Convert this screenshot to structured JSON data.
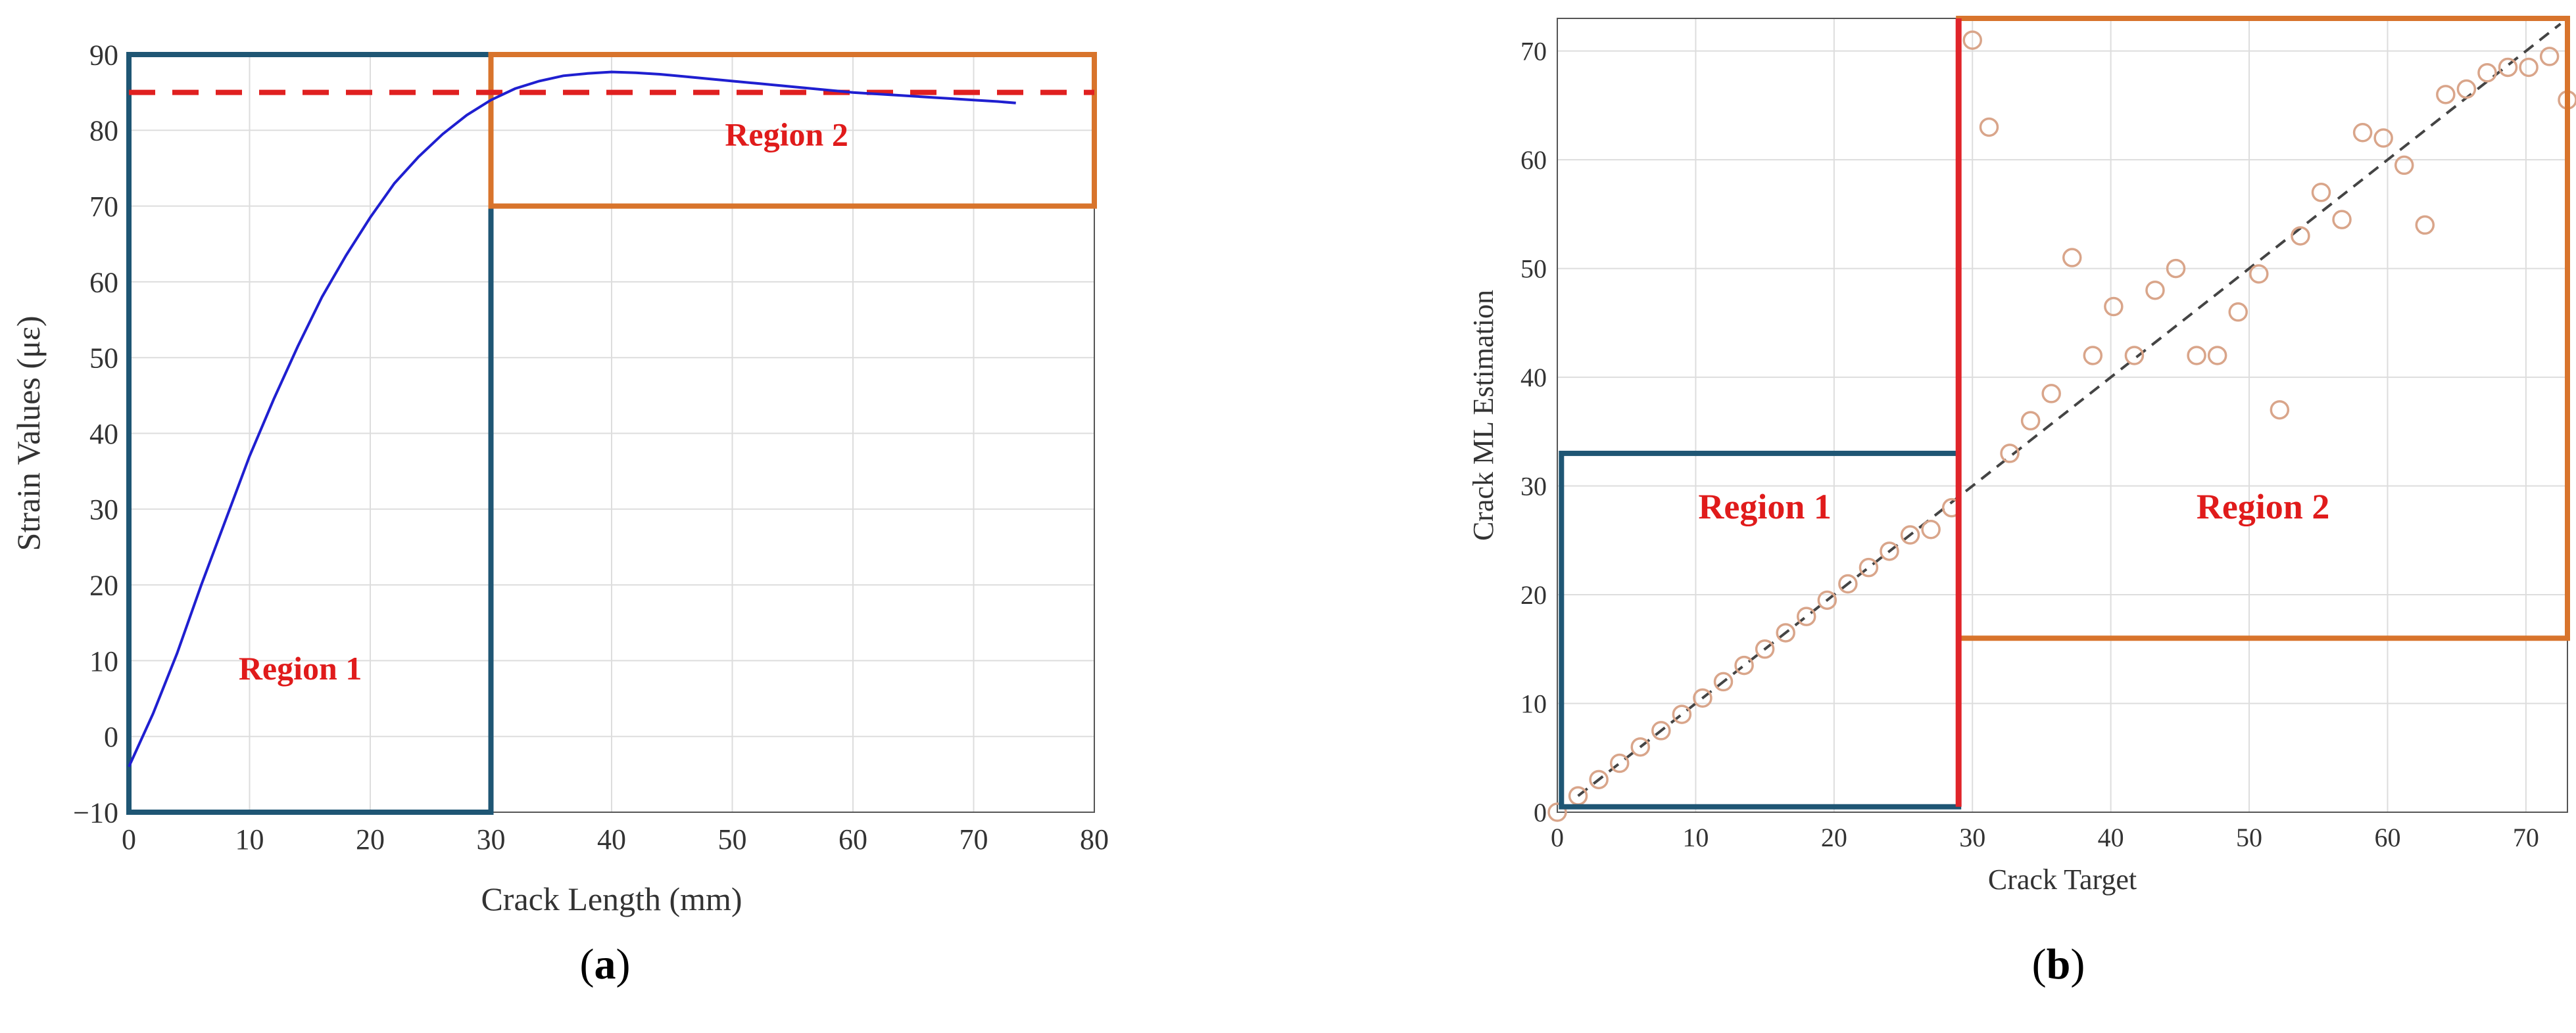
{
  "colors": {
    "curve": "#1f1fd0",
    "threshold": "#e02020",
    "region1_box": "#1f5674",
    "region2_box": "#d8742c",
    "boundary": "#e0242a",
    "scatter": "#d9a58a",
    "diag": "#444444",
    "grid": "#dddddd",
    "region_text": "#e01b1b"
  },
  "captions": {
    "a": "a",
    "b": "b"
  },
  "chart_data": [
    {
      "type": "line",
      "xlabel": "Crack Length (mm)",
      "ylabel": "Strain Values (με)",
      "xlim": [
        0,
        80
      ],
      "ylim": [
        -10,
        90
      ],
      "xticks": [
        0,
        10,
        20,
        30,
        40,
        50,
        60,
        70,
        80
      ],
      "yticks": [
        -10,
        0,
        10,
        20,
        30,
        40,
        50,
        60,
        70,
        80,
        90
      ],
      "grid": true,
      "series": [
        {
          "x": [
            0,
            2,
            4,
            6,
            8,
            10,
            12,
            14,
            16,
            18,
            20,
            22,
            24,
            26,
            28,
            30,
            32,
            34,
            36,
            38,
            40,
            42,
            44,
            46,
            48,
            50,
            52,
            54,
            56,
            58,
            60,
            62,
            64,
            66,
            68,
            70,
            72,
            73.5
          ],
          "y": [
            -4,
            3,
            11,
            20,
            28.5,
            37,
            44.5,
            51.5,
            58,
            63.5,
            68.5,
            73,
            76.5,
            79.5,
            82,
            84,
            85.5,
            86.5,
            87.2,
            87.5,
            87.7,
            87.6,
            87.4,
            87.1,
            86.8,
            86.5,
            86.2,
            85.9,
            85.6,
            85.3,
            85,
            84.8,
            84.6,
            84.4,
            84.2,
            84,
            83.8,
            83.6
          ]
        }
      ],
      "threshold_y": 85,
      "regions": [
        {
          "label": "Region 1",
          "x": [
            0,
            30
          ],
          "y": [
            -10,
            90
          ]
        },
        {
          "label": "Region 2",
          "x": [
            30,
            80
          ],
          "y": [
            70,
            90
          ]
        }
      ]
    },
    {
      "type": "scatter",
      "xlabel": "Crack Target",
      "ylabel": "Crack ML Estimation",
      "xlim": [
        0,
        73
      ],
      "ylim": [
        0,
        73
      ],
      "xticks": [
        0,
        10,
        20,
        30,
        40,
        50,
        60,
        70
      ],
      "yticks": [
        0,
        10,
        20,
        30,
        40,
        50,
        60,
        70
      ],
      "grid": true,
      "diagonal": [
        [
          1.5,
          1.5
        ],
        [
          72.5,
          72.5
        ]
      ],
      "boundary_x": 29,
      "series": [
        {
          "x": [
            0,
            1.5,
            3,
            4.5,
            6,
            7.5,
            9,
            10.5,
            12,
            13.5,
            15,
            16.5,
            18,
            19.5,
            21,
            22.5,
            24,
            25.5,
            27,
            28.5,
            30,
            31.2,
            32.7,
            34.2,
            35.7,
            37.2,
            38.7,
            40.2,
            41.7,
            43.2,
            44.7,
            46.2,
            47.7,
            49.2,
            50.7,
            52.2,
            53.7,
            55.2,
            56.7,
            58.2,
            59.7,
            61.2,
            62.7,
            64.2,
            65.7,
            67.2,
            68.7,
            70.2,
            71.7,
            73
          ],
          "y": [
            0,
            1.5,
            3,
            4.5,
            6,
            7.5,
            9,
            10.5,
            12,
            13.5,
            15,
            16.5,
            18,
            19.5,
            21,
            22.5,
            24,
            25.5,
            26,
            28,
            71,
            63,
            33,
            36,
            38.5,
            51,
            42,
            46.5,
            42,
            48,
            50,
            42,
            42,
            46,
            49.5,
            37,
            53,
            57,
            54.5,
            62.5,
            62,
            59.5,
            54,
            66,
            66.5,
            68,
            68.5,
            68.5,
            69.5,
            65.5
          ]
        }
      ],
      "regions": [
        {
          "label": "Region 1",
          "x": [
            0.3,
            29
          ],
          "y": [
            0.5,
            33
          ]
        },
        {
          "label": "Region 2",
          "x": [
            29,
            73
          ],
          "y": [
            16,
            73
          ]
        }
      ]
    }
  ]
}
